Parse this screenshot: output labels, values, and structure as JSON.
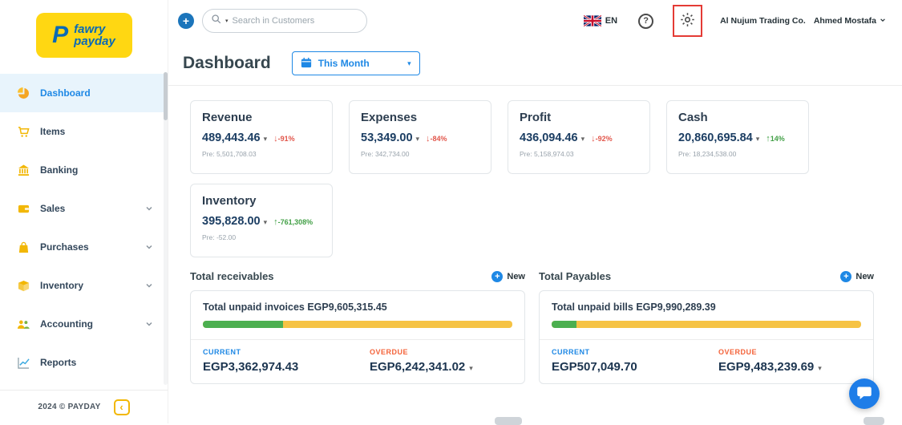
{
  "brand": {
    "initial": "P",
    "line1": "fawry",
    "line2": "payday",
    "copyright": "2024 © PAYDAY"
  },
  "topbar": {
    "search_placeholder": "Search in Customers",
    "language": "EN",
    "company": "Al Nujum Trading Co.",
    "user": "Ahmed Mostafa"
  },
  "page": {
    "title": "Dashboard",
    "period": "This Month"
  },
  "sidebar": {
    "items": [
      {
        "label": "Dashboard",
        "active": true
      },
      {
        "label": "Items"
      },
      {
        "label": "Banking"
      },
      {
        "label": "Sales",
        "expandable": true
      },
      {
        "label": "Purchases",
        "expandable": true
      },
      {
        "label": "Inventory",
        "expandable": true
      },
      {
        "label": "Accounting",
        "expandable": true
      },
      {
        "label": "Reports"
      }
    ]
  },
  "kpis": [
    {
      "title": "Revenue",
      "value": "489,443.46",
      "delta": "-91%",
      "direction": "down",
      "pre": "Pre: 5,501,708.03"
    },
    {
      "title": "Expenses",
      "value": "53,349.00",
      "delta": "-84%",
      "direction": "down",
      "pre": "Pre: 342,734.00"
    },
    {
      "title": "Profit",
      "value": "436,094.46",
      "delta": "-92%",
      "direction": "down",
      "pre": "Pre: 5,158,974.03"
    },
    {
      "title": "Cash",
      "value": "20,860,695.84",
      "delta": "14%",
      "direction": "up",
      "pre": "Pre: 18,234,538.00"
    },
    {
      "title": "Inventory",
      "value": "395,828.00",
      "delta": "-761,308%",
      "direction": "up",
      "pre": "Pre: -52.00"
    }
  ],
  "receivables": {
    "section_title": "Total receivables",
    "new_label": "New",
    "summary": "Total unpaid invoices EGP9,605,315.45",
    "progress_percent": 26,
    "current_label": "CURRENT",
    "current_value": "EGP3,362,974.43",
    "overdue_label": "OVERDUE",
    "overdue_value": "EGP6,242,341.02"
  },
  "payables": {
    "section_title": "Total Payables",
    "new_label": "New",
    "summary": "Total unpaid bills EGP9,990,289.39",
    "progress_percent": 8,
    "current_label": "CURRENT",
    "current_value": "EGP507,049.70",
    "overdue_label": "OVERDUE",
    "overdue_value": "EGP9,483,239.69"
  },
  "icons": {
    "plus": "+",
    "caret_down": "▾",
    "arrow_down": "↓",
    "arrow_up": "↑",
    "help": "?",
    "chevron_left": "‹"
  },
  "colors": {
    "brand_yellow": "#FFD712",
    "brand_blue": "#0A6AB5",
    "accent_blue": "#1E88E5",
    "negative_red": "#E2574C",
    "positive_green": "#43A047",
    "overdue_orange": "#F4633A",
    "progress_yellow": "#F6C344",
    "progress_green": "#4CAF50",
    "annotation_red": "#E43B35"
  }
}
